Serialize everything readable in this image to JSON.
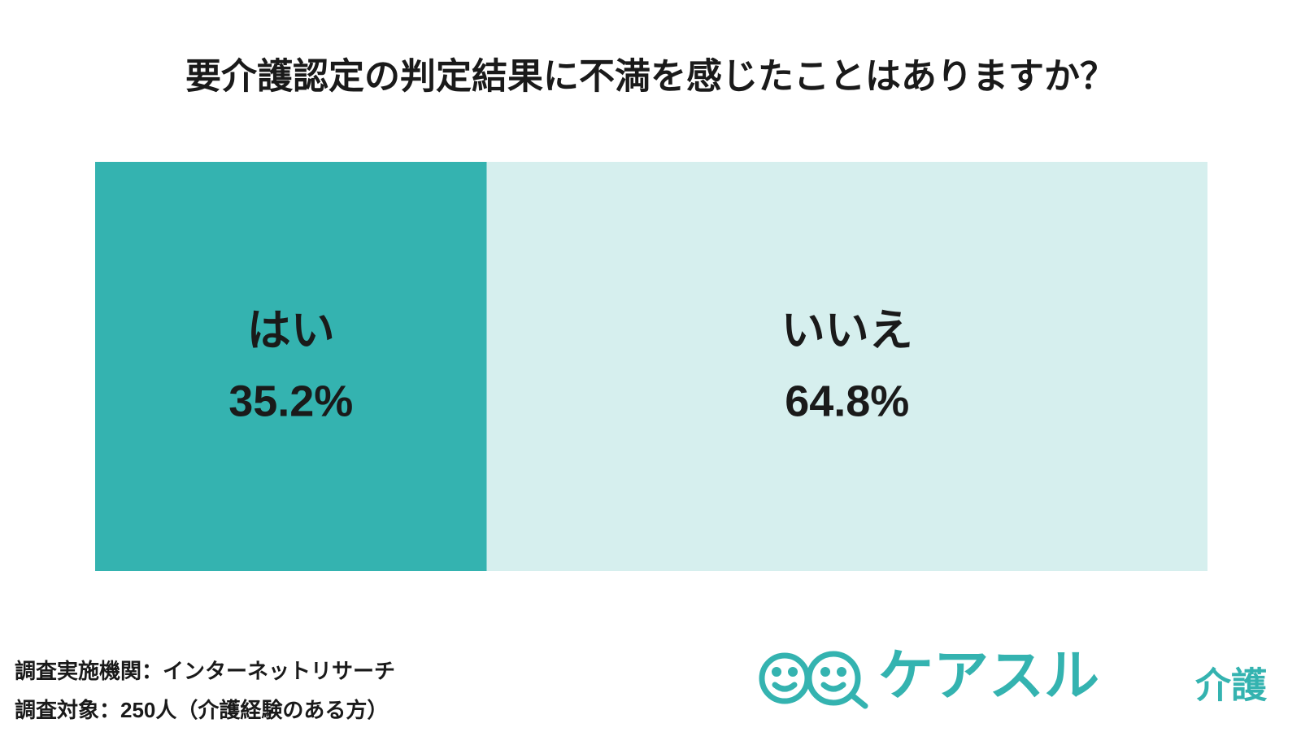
{
  "chart_data": {
    "type": "stacked-bar-100",
    "title": "要介護認定の判定結果に不満を感じたことはありますか？",
    "categories": [
      "はい",
      "いいえ"
    ],
    "values": [
      35.2,
      64.8
    ],
    "value_labels": [
      "35.2%",
      "64.8%"
    ],
    "colors": [
      "#34b3b0",
      "#d6efee"
    ]
  },
  "source": [
    "調査実施機関：インターネットリサーチ",
    "調査対象：250人（介護経験のある方）"
  ],
  "logo": {
    "name": "ケアスル",
    "sub": "介護"
  }
}
